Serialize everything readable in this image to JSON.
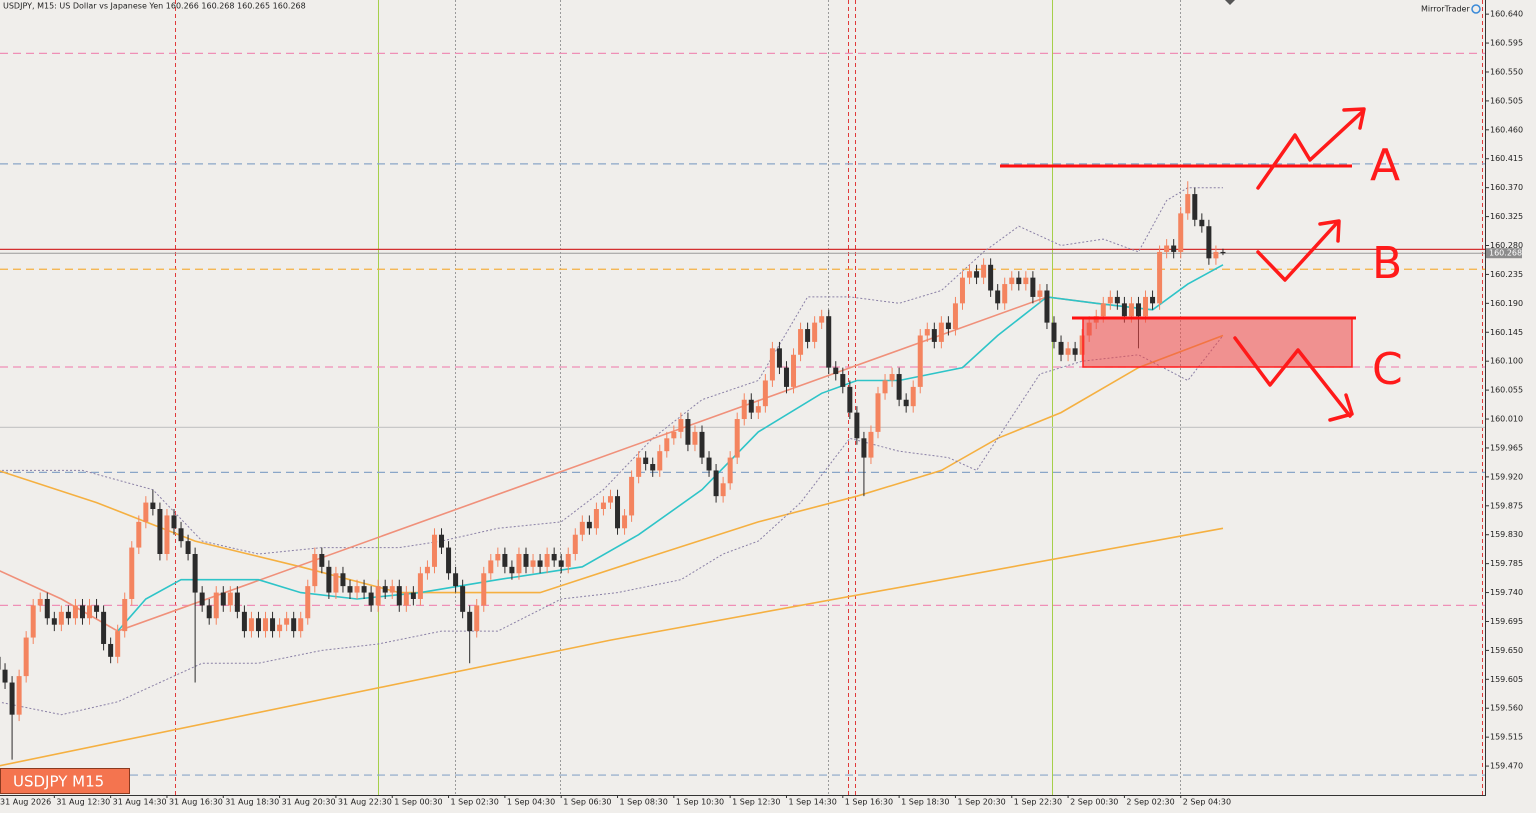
{
  "chart_data": {
    "type": "candlestick",
    "title": "USDJPY, M15:  US Dollar vs Japanese Yen  160.266 160.268 160.265 160.268",
    "brand": "MirrorTrader",
    "symbol_label": "USDJPY M15",
    "annotations": [
      "A",
      "B",
      "C"
    ],
    "grid": false,
    "up_color": "#f4845f",
    "down_color": "#2b2b2b",
    "ylim": [
      159.425,
      160.662
    ],
    "yticks": [
      {
        "value": 160.64,
        "label": "160.640"
      },
      160.595,
      {
        "value": 160.55,
        "label": "160.550"
      },
      160.505,
      {
        "value": 160.46,
        "label": "160.460"
      },
      160.415,
      {
        "value": 160.37,
        "label": "160.370"
      },
      160.325,
      {
        "value": 160.28,
        "label": "160.280"
      },
      160.235,
      {
        "value": 160.19,
        "label": "160.190"
      },
      160.145,
      {
        "value": 160.1,
        "label": "160.100"
      },
      160.055,
      {
        "value": 160.01,
        "label": "160.010"
      },
      159.965,
      {
        "value": 159.92,
        "label": "159.920"
      },
      159.875,
      {
        "value": 159.83,
        "label": "159.830"
      },
      159.785,
      {
        "value": 159.74,
        "label": "159.740"
      },
      159.695,
      {
        "value": 159.65,
        "label": "159.650"
      },
      159.605,
      {
        "value": 159.56,
        "label": "159.560"
      },
      159.515,
      {
        "value": 159.47,
        "label": "159.470"
      }
    ],
    "last_price": 160.268,
    "categories": [
      "31 Aug 2026",
      null,
      null,
      null,
      null,
      null,
      null,
      null,
      "31 Aug 12:30",
      null,
      null,
      null,
      null,
      null,
      null,
      null,
      "31 Aug 14:30",
      null,
      null,
      null,
      null,
      null,
      null,
      null,
      "31 Aug 16:30",
      null,
      null,
      null,
      null,
      null,
      null,
      null,
      "31 Aug 18:30",
      null,
      null,
      null,
      null,
      null,
      null,
      null,
      "31 Aug 20:30",
      null,
      null,
      null,
      null,
      null,
      null,
      null,
      "31 Aug 22:30",
      null,
      null,
      null,
      null,
      null,
      null,
      null,
      "1 Sep 00:30",
      null,
      null,
      null,
      null,
      null,
      null,
      null,
      "1 Sep 02:30",
      null,
      null,
      null,
      null,
      null,
      null,
      null,
      "1 Sep 04:30",
      null,
      null,
      null,
      null,
      null,
      null,
      null,
      "1 Sep 06:30",
      null,
      null,
      null,
      null,
      null,
      null,
      null,
      "1 Sep 08:30",
      null,
      null,
      null,
      null,
      null,
      null,
      null,
      "1 Sep 10:30",
      null,
      null,
      null,
      null,
      null,
      null,
      null,
      "1 Sep 12:30",
      null,
      null,
      null,
      null,
      null,
      null,
      null,
      "1 Sep 14:30",
      null,
      null,
      null,
      null,
      null,
      null,
      null,
      "1 Sep 16:30",
      null,
      null,
      null,
      null,
      null,
      null,
      null,
      "1 Sep 18:30",
      null,
      null,
      null,
      null,
      null,
      null,
      null,
      "1 Sep 20:30",
      null,
      null,
      null,
      null,
      null,
      null,
      null,
      "1 Sep 22:30",
      null,
      null,
      null,
      null,
      null,
      null,
      null,
      "2 Sep 00:30",
      null,
      null,
      null,
      null,
      null,
      null,
      null,
      "2 Sep 02:30",
      null,
      null,
      null,
      null,
      null,
      null,
      null,
      "2 Sep 04:30",
      null,
      null,
      null,
      null,
      null,
      null
    ],
    "open": [
      159.64,
      159.62,
      159.6,
      159.55,
      159.61,
      159.67,
      159.72,
      159.73,
      159.7,
      159.69,
      159.71,
      159.7,
      159.72,
      159.7,
      159.72,
      159.71,
      159.66,
      159.64,
      159.68,
      159.73,
      159.81,
      159.85,
      159.88,
      159.87,
      159.8,
      159.86,
      159.84,
      159.82,
      159.8,
      159.74,
      159.72,
      159.7,
      159.74,
      159.72,
      159.74,
      159.71,
      159.68,
      159.7,
      159.68,
      159.7,
      159.68,
      159.69,
      159.7,
      159.68,
      159.7,
      159.75,
      159.8,
      159.78,
      159.74,
      159.77,
      159.75,
      159.74,
      159.75,
      159.74,
      159.72,
      159.75,
      159.74,
      159.75,
      159.72,
      159.74,
      159.73,
      159.77,
      159.78,
      159.83,
      159.81,
      159.77,
      159.75,
      159.71,
      159.68,
      159.72,
      159.77,
      159.79,
      159.8,
      159.78,
      159.77,
      159.8,
      159.78,
      159.79,
      159.78,
      159.8,
      159.79,
      159.78,
      159.8,
      159.83,
      159.85,
      159.84,
      159.87,
      159.88,
      159.89,
      159.84,
      159.86,
      159.92,
      159.95,
      159.94,
      159.93,
      159.96,
      159.98,
      159.99,
      160.01,
      159.97,
      159.99,
      159.95,
      159.93,
      159.89,
      159.91,
      159.95,
      160.01,
      160.04,
      160.02,
      160.03,
      160.07,
      160.12,
      160.09,
      160.06,
      160.11,
      160.15,
      160.13,
      160.16,
      160.17,
      160.09,
      160.08,
      160.06,
      160.02,
      159.98,
      159.95,
      159.99,
      160.05,
      160.07,
      160.08,
      160.04,
      160.03,
      160.06,
      160.14,
      160.15,
      160.13,
      160.16,
      160.15,
      160.19,
      160.23,
      160.24,
      160.23,
      160.25,
      160.21,
      160.19,
      160.22,
      160.23,
      160.22,
      160.23,
      160.2,
      160.21,
      160.16,
      160.13,
      160.11,
      160.12,
      160.11,
      160.14,
      160.16,
      160.17,
      160.19,
      160.2,
      160.19,
      160.17,
      160.19,
      160.17,
      160.2,
      160.19,
      160.27,
      160.28,
      160.27,
      160.33,
      160.36,
      160.32,
      160.31,
      160.26,
      160.27
    ],
    "high": [
      159.65,
      159.63,
      159.61,
      159.62,
      159.68,
      159.73,
      159.74,
      159.74,
      159.71,
      159.72,
      159.72,
      159.73,
      159.73,
      159.73,
      159.73,
      159.72,
      159.67,
      159.69,
      159.74,
      159.82,
      159.86,
      159.89,
      159.9,
      159.88,
      159.87,
      159.87,
      159.85,
      159.83,
      159.81,
      159.75,
      159.73,
      159.75,
      159.75,
      159.75,
      159.75,
      159.72,
      159.71,
      159.71,
      159.71,
      159.71,
      159.7,
      159.71,
      159.71,
      159.71,
      159.76,
      159.81,
      159.81,
      159.79,
      159.78,
      159.78,
      159.76,
      159.76,
      159.76,
      159.75,
      159.76,
      159.76,
      159.76,
      159.76,
      159.75,
      159.75,
      159.78,
      159.79,
      159.84,
      159.84,
      159.82,
      159.78,
      159.76,
      159.72,
      159.73,
      159.78,
      159.8,
      159.81,
      159.81,
      159.79,
      159.81,
      159.81,
      159.8,
      159.8,
      159.81,
      159.81,
      159.8,
      159.81,
      159.84,
      159.86,
      159.86,
      159.88,
      159.89,
      159.9,
      159.9,
      159.87,
      159.93,
      159.96,
      159.96,
      159.95,
      159.97,
      159.99,
      160.0,
      160.02,
      160.02,
      160.0,
      160.0,
      159.96,
      159.94,
      159.92,
      159.96,
      160.02,
      160.05,
      160.05,
      160.04,
      160.08,
      160.13,
      160.13,
      160.1,
      160.12,
      160.16,
      160.16,
      160.17,
      160.18,
      160.18,
      160.1,
      160.09,
      160.07,
      160.03,
      159.99,
      160.0,
      160.06,
      160.08,
      160.09,
      160.09,
      160.05,
      160.07,
      160.15,
      160.16,
      160.16,
      160.17,
      160.17,
      160.2,
      160.24,
      160.25,
      160.25,
      160.26,
      160.26,
      160.22,
      160.23,
      160.24,
      160.24,
      160.24,
      160.24,
      160.22,
      160.22,
      160.17,
      160.14,
      160.13,
      160.13,
      160.15,
      160.17,
      160.18,
      160.2,
      160.21,
      160.21,
      160.2,
      160.2,
      160.2,
      160.21,
      160.21,
      160.28,
      160.29,
      160.29,
      160.34,
      160.38,
      160.37,
      160.33,
      160.32,
      160.28,
      160.275
    ],
    "low": [
      159.61,
      159.59,
      159.48,
      159.54,
      159.6,
      159.66,
      159.71,
      159.69,
      159.68,
      159.68,
      159.69,
      159.69,
      159.69,
      159.69,
      159.7,
      159.65,
      159.63,
      159.63,
      159.67,
      159.72,
      159.8,
      159.84,
      159.86,
      159.79,
      159.79,
      159.83,
      159.81,
      159.79,
      159.6,
      159.71,
      159.69,
      159.69,
      159.71,
      159.71,
      159.7,
      159.67,
      159.67,
      159.67,
      159.67,
      159.67,
      159.67,
      159.68,
      159.67,
      159.67,
      159.69,
      159.74,
      159.77,
      159.73,
      159.73,
      159.74,
      159.73,
      159.73,
      159.73,
      159.71,
      159.71,
      159.73,
      159.73,
      159.71,
      159.71,
      159.72,
      159.72,
      159.76,
      159.77,
      159.8,
      159.76,
      159.74,
      159.7,
      159.63,
      159.67,
      159.71,
      159.76,
      159.78,
      159.77,
      159.76,
      159.76,
      159.77,
      159.77,
      159.77,
      159.77,
      159.78,
      159.77,
      159.77,
      159.79,
      159.82,
      159.83,
      159.83,
      159.86,
      159.87,
      159.83,
      159.83,
      159.85,
      159.91,
      159.93,
      159.92,
      159.92,
      159.95,
      159.97,
      159.98,
      159.96,
      159.96,
      159.94,
      159.92,
      159.88,
      159.88,
      159.9,
      159.94,
      160.0,
      160.01,
      160.01,
      160.02,
      160.06,
      160.08,
      160.05,
      160.05,
      160.1,
      160.12,
      160.12,
      160.15,
      160.08,
      160.07,
      160.05,
      160.01,
      159.97,
      159.89,
      159.94,
      159.98,
      160.04,
      160.06,
      160.03,
      160.02,
      160.02,
      160.05,
      160.13,
      160.12,
      160.12,
      160.14,
      160.14,
      160.18,
      160.22,
      160.22,
      160.22,
      160.2,
      160.18,
      160.18,
      160.21,
      160.21,
      160.21,
      160.19,
      160.19,
      160.15,
      160.12,
      160.1,
      160.1,
      160.1,
      160.1,
      160.13,
      160.15,
      160.16,
      160.18,
      160.18,
      160.16,
      160.16,
      160.12,
      160.16,
      160.18,
      160.18,
      160.26,
      160.26,
      160.26,
      160.32,
      160.31,
      160.3,
      160.25,
      160.25,
      160.265
    ],
    "close": [
      159.62,
      159.6,
      159.55,
      159.61,
      159.67,
      159.72,
      159.73,
      159.7,
      159.69,
      159.71,
      159.7,
      159.72,
      159.7,
      159.72,
      159.71,
      159.66,
      159.64,
      159.68,
      159.73,
      159.81,
      159.85,
      159.88,
      159.87,
      159.8,
      159.86,
      159.84,
      159.82,
      159.8,
      159.74,
      159.72,
      159.7,
      159.74,
      159.72,
      159.74,
      159.71,
      159.68,
      159.7,
      159.68,
      159.7,
      159.68,
      159.69,
      159.7,
      159.68,
      159.7,
      159.75,
      159.8,
      159.78,
      159.74,
      159.77,
      159.75,
      159.74,
      159.75,
      159.74,
      159.72,
      159.75,
      159.74,
      159.75,
      159.72,
      159.74,
      159.73,
      159.77,
      159.78,
      159.83,
      159.81,
      159.77,
      159.75,
      159.71,
      159.68,
      159.72,
      159.77,
      159.79,
      159.8,
      159.78,
      159.77,
      159.8,
      159.78,
      159.79,
      159.78,
      159.8,
      159.79,
      159.78,
      159.8,
      159.83,
      159.85,
      159.84,
      159.87,
      159.88,
      159.89,
      159.84,
      159.86,
      159.92,
      159.95,
      159.94,
      159.93,
      159.96,
      159.98,
      159.99,
      160.01,
      159.97,
      159.99,
      159.95,
      159.93,
      159.89,
      159.91,
      159.95,
      160.01,
      160.04,
      160.02,
      160.03,
      160.07,
      160.12,
      160.09,
      160.06,
      160.11,
      160.15,
      160.13,
      160.16,
      160.17,
      160.09,
      160.08,
      160.06,
      160.02,
      159.98,
      159.95,
      159.99,
      160.05,
      160.07,
      160.08,
      160.04,
      160.03,
      160.06,
      160.14,
      160.15,
      160.13,
      160.16,
      160.15,
      160.19,
      160.23,
      160.24,
      160.23,
      160.25,
      160.21,
      160.19,
      160.22,
      160.23,
      160.22,
      160.23,
      160.2,
      160.21,
      160.16,
      160.13,
      160.11,
      160.12,
      160.11,
      160.14,
      160.16,
      160.17,
      160.19,
      160.2,
      160.19,
      160.17,
      160.19,
      160.17,
      160.2,
      160.19,
      160.27,
      160.28,
      160.27,
      160.33,
      160.36,
      160.32,
      160.31,
      160.26,
      160.27,
      160.268
    ],
    "levels": [
      {
        "value": 160.579,
        "color": "#ef8fb6",
        "dashed": true
      },
      {
        "value": 160.407,
        "color": "#8aa6c8",
        "dashed": true
      },
      {
        "value": 160.274,
        "color": "#d43030",
        "dashed": false
      },
      {
        "value": 160.243,
        "color": "#f5b041",
        "dashed": true
      },
      {
        "value": 160.091,
        "color": "#ef8fb6",
        "dashed": true
      },
      {
        "value": 159.997,
        "color": "#c8c8c8",
        "dashed": false
      },
      {
        "value": 159.927,
        "color": "#8aa6c8",
        "dashed": true
      },
      {
        "value": 159.72,
        "color": "#ef8fb6",
        "dashed": true
      },
      {
        "value": 159.456,
        "color": "#8aa6c8",
        "dashed": true
      }
    ],
    "lines": [
      {
        "color": "#f5b041",
        "style": "solid",
        "x": [
          0,
          87,
          174
        ],
        "values": [
          159.47,
          159.666,
          159.84
        ]
      },
      {
        "color": "#f5b041",
        "style": "solid",
        "x": [
          0,
          14,
          28,
          43,
          57,
          77,
          91,
          108,
          122,
          134,
          142,
          151,
          162,
          174
        ],
        "values": [
          159.93,
          159.88,
          159.82,
          159.78,
          159.74,
          159.74,
          159.79,
          159.85,
          159.89,
          159.93,
          159.98,
          160.02,
          160.09,
          160.14
        ]
      },
      {
        "color": "#8a80a6",
        "style": "dotted",
        "x": [
          0,
          12,
          22,
          29,
          37,
          46,
          57,
          63,
          71,
          80,
          86,
          93,
          100,
          108,
          115,
          121,
          128,
          134,
          140,
          145,
          151,
          157,
          162,
          166,
          169,
          174
        ],
        "values": [
          159.93,
          159.93,
          159.9,
          159.82,
          159.8,
          159.81,
          159.81,
          159.82,
          159.84,
          159.85,
          159.9,
          159.98,
          160.04,
          160.07,
          160.2,
          160.2,
          160.19,
          160.21,
          160.27,
          160.31,
          160.28,
          160.29,
          160.27,
          160.35,
          160.37,
          160.37
        ]
      },
      {
        "color": "#8a80a6",
        "style": "dotted",
        "x": [
          0,
          9,
          17,
          23,
          29,
          37,
          46,
          54,
          63,
          71,
          80,
          88,
          97,
          103,
          108,
          114,
          121,
          128,
          135,
          139,
          142,
          148,
          154,
          162,
          169,
          174
        ],
        "values": [
          159.57,
          159.55,
          159.57,
          159.6,
          159.63,
          159.63,
          159.65,
          159.66,
          159.68,
          159.68,
          159.73,
          159.74,
          159.76,
          159.8,
          159.82,
          159.88,
          159.98,
          159.96,
          159.95,
          159.93,
          159.98,
          160.08,
          160.1,
          160.11,
          160.07,
          160.14
        ]
      },
      {
        "color": "#f0907a",
        "style": "solid",
        "x": [
          0,
          9,
          17,
          149,
          156,
          164
        ],
        "values": [
          159.775,
          159.73,
          159.68,
          160.2,
          160.19,
          160.18
        ]
      },
      {
        "color": "#2ec4c8",
        "style": "solid",
        "x": [
          17,
          21,
          26,
          37,
          43,
          51,
          60,
          71,
          83,
          91,
          100,
          108,
          117,
          122,
          128,
          137,
          142,
          149,
          156,
          164,
          169,
          174
        ],
        "values": [
          159.68,
          159.73,
          159.76,
          159.76,
          159.74,
          159.73,
          159.74,
          159.76,
          159.78,
          159.83,
          159.9,
          159.99,
          160.05,
          160.07,
          160.07,
          160.09,
          160.14,
          160.2,
          160.19,
          160.18,
          160.22,
          160.25
        ]
      }
    ]
  }
}
